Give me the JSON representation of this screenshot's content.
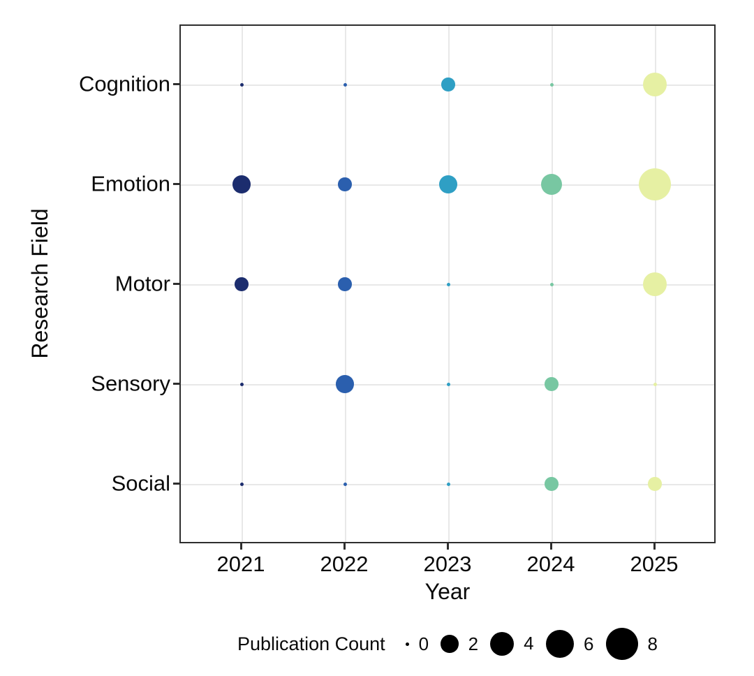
{
  "chart_data": {
    "type": "scatter",
    "subtype": "bubble",
    "title": "",
    "xlabel": "Year",
    "ylabel": "Research Field",
    "x": [
      "2021",
      "2022",
      "2023",
      "2024",
      "2025"
    ],
    "categories": [
      "Cognition",
      "Emotion",
      "Motor",
      "Sensory",
      "Social"
    ],
    "series": [
      {
        "name": "Cognition",
        "values": [
          0,
          0,
          1,
          0,
          4
        ]
      },
      {
        "name": "Emotion",
        "values": [
          2,
          1,
          2,
          3,
          8
        ]
      },
      {
        "name": "Motor",
        "values": [
          1,
          1,
          0,
          0,
          4
        ]
      },
      {
        "name": "Sensory",
        "values": [
          0,
          2,
          0,
          1,
          0
        ]
      },
      {
        "name": "Social",
        "values": [
          0,
          0,
          0,
          1,
          1
        ]
      }
    ],
    "year_colors": {
      "2021": "#1c2d6e",
      "2022": "#2b5fae",
      "2023": "#2f9fc4",
      "2024": "#78c7a2",
      "2025": "#e6f0a3"
    },
    "size_legend": {
      "title": "Publication Count",
      "values": [
        0,
        2,
        4,
        6,
        8
      ],
      "dot_color": "#000000"
    },
    "size_scale": {
      "r_min": 2.5,
      "r_max": 23,
      "v_max": 8
    },
    "grid": true,
    "legend_position": "bottom",
    "panel_border_color": "#2e2e2e",
    "gridline_color": "#e8e8e8"
  }
}
